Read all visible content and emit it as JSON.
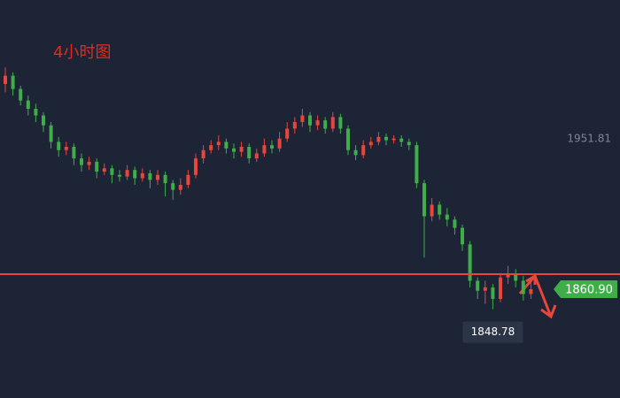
{
  "chart_data": {
    "type": "candlestick",
    "title": "4小时图",
    "up_color": "#e8463c",
    "down_color": "#3fae49",
    "ylim": [
      1795.1,
      2035.8
    ],
    "ohlc": [
      [
        1985,
        1995,
        1980,
        1990
      ],
      [
        1990,
        1992,
        1978,
        1982
      ],
      [
        1982,
        1984,
        1972,
        1975
      ],
      [
        1975,
        1978,
        1966,
        1970
      ],
      [
        1970,
        1973,
        1962,
        1966
      ],
      [
        1966,
        1968,
        1956,
        1960
      ],
      [
        1960,
        1962,
        1946,
        1950
      ],
      [
        1950,
        1953,
        1941,
        1945
      ],
      [
        1945,
        1950,
        1942,
        1947
      ],
      [
        1947,
        1949,
        1936,
        1940
      ],
      [
        1940,
        1943,
        1932,
        1936
      ],
      [
        1936,
        1941,
        1933,
        1938
      ],
      [
        1938,
        1940,
        1928,
        1932
      ],
      [
        1932,
        1937,
        1930,
        1934
      ],
      [
        1934,
        1936,
        1925,
        1930
      ],
      [
        1930,
        1933,
        1926,
        1929
      ],
      [
        1929,
        1936,
        1927,
        1933
      ],
      [
        1933,
        1935,
        1924,
        1928
      ],
      [
        1928,
        1934,
        1926,
        1931
      ],
      [
        1931,
        1933,
        1922,
        1927
      ],
      [
        1927,
        1933,
        1924,
        1930
      ],
      [
        1930,
        1932,
        1917,
        1925
      ],
      [
        1925,
        1927,
        1915,
        1921
      ],
      [
        1921,
        1928,
        1918,
        1924
      ],
      [
        1924,
        1933,
        1922,
        1930
      ],
      [
        1930,
        1943,
        1928,
        1940
      ],
      [
        1940,
        1948,
        1937,
        1945
      ],
      [
        1945,
        1951,
        1943,
        1948
      ],
      [
        1948,
        1954,
        1945,
        1950
      ],
      [
        1950,
        1952,
        1943,
        1946
      ],
      [
        1946,
        1949,
        1940,
        1944
      ],
      [
        1944,
        1950,
        1941,
        1947
      ],
      [
        1947,
        1949,
        1937,
        1940
      ],
      [
        1940,
        1946,
        1938,
        1943
      ],
      [
        1943,
        1952,
        1941,
        1948
      ],
      [
        1948,
        1951,
        1943,
        1946
      ],
      [
        1946,
        1956,
        1944,
        1952
      ],
      [
        1952,
        1962,
        1950,
        1958
      ],
      [
        1958,
        1965,
        1955,
        1962
      ],
      [
        1962,
        1970,
        1959,
        1966
      ],
      [
        1966,
        1968,
        1956,
        1960
      ],
      [
        1960,
        1966,
        1957,
        1963
      ],
      [
        1963,
        1965,
        1955,
        1958
      ],
      [
        1958,
        1968,
        1956,
        1965
      ],
      [
        1965,
        1967,
        1955,
        1958
      ],
      [
        1958,
        1960,
        1942,
        1945
      ],
      [
        1945,
        1948,
        1939,
        1942
      ],
      [
        1942,
        1951,
        1940,
        1948
      ],
      [
        1948,
        1953,
        1946,
        1950
      ],
      [
        1950,
        1956,
        1948,
        1953
      ],
      [
        1953,
        1955,
        1948,
        1951
      ],
      [
        1951,
        1954,
        1949,
        1952
      ],
      [
        1952,
        1954,
        1947,
        1950
      ],
      [
        1950,
        1952,
        1945,
        1948
      ],
      [
        1948,
        1950,
        1922,
        1925
      ],
      [
        1925,
        1927,
        1880,
        1905
      ],
      [
        1905,
        1916,
        1902,
        1912
      ],
      [
        1912,
        1914,
        1903,
        1906
      ],
      [
        1906,
        1910,
        1899,
        1903
      ],
      [
        1903,
        1905,
        1894,
        1898
      ],
      [
        1898,
        1900,
        1884,
        1888
      ],
      [
        1888,
        1890,
        1862,
        1866
      ],
      [
        1866,
        1868,
        1855,
        1860
      ],
      [
        1860,
        1866,
        1852,
        1862
      ],
      [
        1862,
        1864,
        1848.78,
        1855
      ],
      [
        1855,
        1870,
        1853,
        1868
      ],
      [
        1868,
        1875,
        1864,
        1870
      ],
      [
        1870,
        1873,
        1862,
        1866
      ],
      [
        1866,
        1869,
        1854,
        1858
      ],
      [
        1858,
        1868,
        1855,
        1860.9
      ]
    ],
    "support_line": 1870,
    "support_color": "#e8463c",
    "price_label": 1951.81,
    "last_price": {
      "value": 1860.9,
      "label": "1860.90"
    },
    "low_marker_candle": 64
  }
}
